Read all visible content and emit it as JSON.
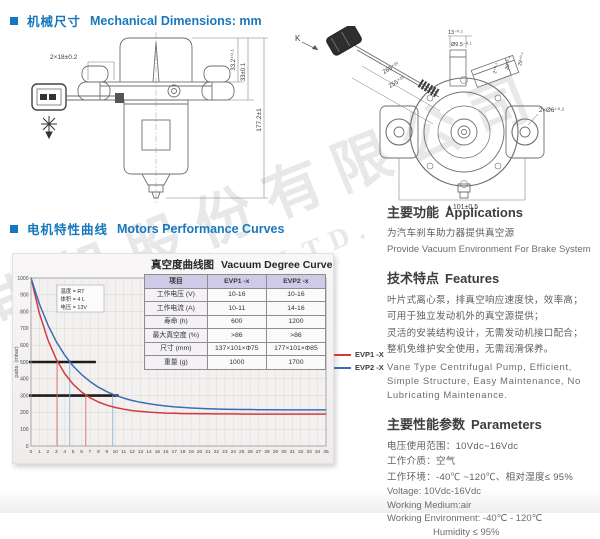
{
  "page": {
    "accent": "#1577bd"
  },
  "headers": {
    "mech": {
      "zh": "机械尺寸",
      "en": "Mechanical Dimensions: mm"
    },
    "curves": {
      "zh": "电机特性曲线",
      "en": "Motors Performance Curves"
    }
  },
  "drawings": {
    "left": {
      "slot": "2×18±0.2",
      "h1": "33.2⁺⁰·¹",
      "h2": "33±0.1",
      "total": "177.2±1"
    },
    "right": {
      "k": "K",
      "cable1": "265⁺¹⁰",
      "cable2": "255⁺¹⁰",
      "port_len": "13⁻⁰·¹",
      "port_dia": "Ø9.5⁻⁰·¹",
      "d2": "2⁺⁰·¹",
      "d20": "20⁺⁰·¹",
      "d29": "29⁺⁰·¹",
      "holes": "2×Ø6⁺⁰·²",
      "width": "▲101±0.5"
    }
  },
  "chart_data": {
    "type": "line",
    "title_zh": "真空度曲线图",
    "title_en": "Vacuum Degree Curve",
    "ylabel": "pabs. (mbar)",
    "xlabel": "",
    "xlim": [
      0,
      35
    ],
    "ylim": [
      0,
      1000
    ],
    "x_tick_step": 1,
    "y_tick_step": 100,
    "grid": true,
    "legend_position": "right",
    "annotation": [
      "温度 = RT",
      "体积 = 4 L",
      "电压 = 13V"
    ],
    "series": [
      {
        "name": "EVP1 -X",
        "color": "#d23b3e",
        "x": [
          0,
          1,
          2,
          3,
          4,
          5,
          6,
          7,
          8,
          9,
          10,
          11,
          12,
          13,
          14,
          15,
          16,
          17,
          18,
          19,
          20,
          21,
          22,
          23,
          24,
          25,
          26,
          27,
          28,
          29,
          30,
          31,
          32,
          33,
          34,
          35
        ],
        "y": [
          1000,
          789,
          632,
          516,
          431,
          368,
          321,
          287,
          262,
          243,
          229,
          219,
          211,
          206,
          202,
          199,
          196,
          195,
          193,
          193,
          192,
          192,
          191,
          191,
          191,
          190,
          190,
          190,
          190,
          190,
          190,
          190,
          190,
          190,
          190,
          190
        ]
      },
      {
        "name": "EVP2 -X",
        "color": "#3a6db6",
        "x": [
          0,
          1,
          2,
          3,
          4,
          5,
          6,
          7,
          8,
          9,
          10,
          11,
          12,
          13,
          14,
          15,
          16,
          17,
          18,
          19,
          20,
          21,
          22,
          23,
          24,
          25,
          26,
          27,
          28,
          29,
          30,
          31,
          32,
          33,
          34,
          35
        ],
        "y": [
          1000,
          845,
          721,
          621,
          541,
          476,
          425,
          384,
          350,
          323,
          302,
          285,
          271,
          260,
          251,
          244,
          238,
          233,
          230,
          226,
          224,
          222,
          220,
          219,
          218,
          217,
          217,
          216,
          216,
          216,
          215,
          215,
          215,
          215,
          215,
          215
        ]
      }
    ],
    "ref_lines_h": [
      {
        "y": 500,
        "x0": 0,
        "x1": 7.7,
        "color": "#1c1c1c",
        "width": 2.6
      },
      {
        "y": 300,
        "x0": 0,
        "x1": 10.4,
        "color": "#1c1c1c",
        "width": 2.6
      }
    ],
    "drop_lines": [
      {
        "x": 3.1,
        "y": 500,
        "color": "#d96b6c"
      },
      {
        "x": 6.5,
        "y": 300,
        "color": "#d96b6c"
      },
      {
        "x": 4.6,
        "y": 500,
        "color": "#8ab5da"
      },
      {
        "x": 9.7,
        "y": 300,
        "color": "#8ab5da"
      }
    ]
  },
  "spec_table": {
    "headers": [
      "项目",
      "EVP1 -x",
      "EVP2 -x"
    ],
    "rows": [
      [
        "工作电压  (V)",
        "10-16",
        "10-16"
      ],
      [
        "工作电流  (A)",
        "10-11",
        "14-16"
      ],
      [
        "寿命  (h)",
        "600",
        "1200"
      ],
      [
        "最大真空度  (%)",
        ">86",
        ">86"
      ],
      [
        "尺寸  (mm)",
        "137×101×Φ75",
        "177×101×Φ85"
      ],
      [
        "重量  (g)",
        "1000",
        "1700"
      ]
    ]
  },
  "legend": [
    {
      "label": "EVP1 -X",
      "color": "#d23b3e"
    },
    {
      "label": "EVP2 -X",
      "color": "#3a6db6"
    }
  ],
  "right_col": {
    "applications": {
      "title_zh": "主要功能",
      "title_en": "Applications",
      "zh": "为汽车刹车助力器提供真空源",
      "en": "Provide Vacuum Environment For Brake System"
    },
    "features": {
      "title_zh": "技术特点",
      "title_en": "Features",
      "zh": [
        "叶片式离心泵，排真空响应速度快，效率高；",
        "可用于独立发动机外的真空源提供；",
        "灵活的安装结构设计，无需发动机接口配合；",
        "整机免维护安全使用，无需润滑保养。"
      ],
      "en": "Vane Type Centrifugal Pump, Efficient, Simple Structure, Easy Maintenance, No Lubricating Maintenance."
    },
    "parameters": {
      "title_zh": "主要性能参数",
      "title_en": "Parameters",
      "zh": [
        "电压使用范围：10Vdc~16Vdc",
        "工作介质：空气",
        "工作环境：-40℃ ~120℃、相对湿度≤ 95%"
      ],
      "en": [
        "Voltage: 10Vdc-16Vdc",
        "Working Medium:air",
        "Working Environment: -40℃ - 120℃",
        "Humidity ≤ 95%"
      ]
    }
  },
  "watermark": {
    "zh": "电机股份有限公司",
    "en": "MOTOR CO., LTD.",
    "reg": "®"
  }
}
